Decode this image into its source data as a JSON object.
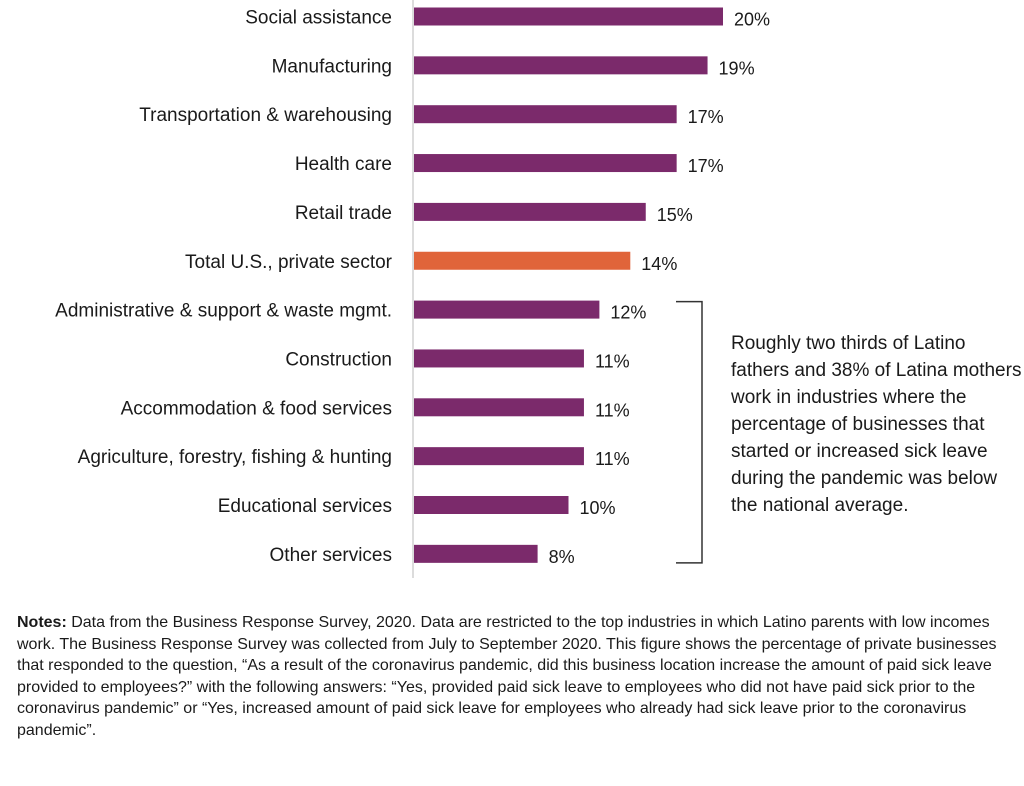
{
  "chart_data": {
    "type": "bar",
    "orientation": "horizontal",
    "categories": [
      "Social assistance",
      "Manufacturing",
      "Transportation & warehousing",
      "Health care",
      "Retail trade",
      "Total U.S., private sector",
      "Administrative & support & waste mgmt.",
      "Construction",
      "Accommodation & food services",
      "Agriculture, forestry, fishing & hunting",
      "Educational services",
      "Other services"
    ],
    "values": [
      20,
      19,
      17,
      17,
      15,
      14,
      12,
      11,
      11,
      11,
      10,
      8
    ],
    "value_labels": [
      "20%",
      "19%",
      "17%",
      "17%",
      "15%",
      "14%",
      "12%",
      "11%",
      "11%",
      "11%",
      "10%",
      "8%"
    ],
    "highlight_index": 5,
    "colors": {
      "bar": "#7b2a6b",
      "highlight": "#e0643a",
      "axis": "#d0d0d0",
      "bracket": "#333333"
    },
    "xlim": [
      0,
      20
    ],
    "grid": false,
    "annotation": {
      "bracket_from_index": 6,
      "bracket_to_index": 11,
      "text": "Roughly two thirds of Latino fathers and 38% of Latina mothers work in industries where the percentage of businesses that started or increased sick leave during the pandemic was below the national average."
    }
  },
  "notes": {
    "label": "Notes:",
    "text": " Data from the Business Response Survey, 2020. Data are restricted to the top industries in which Latino parents with low incomes work. The Business Response Survey was collected from July to September 2020. This figure shows the percentage of private businesses that responded to the question, “As a result of the coronavirus pandemic, did this business location increase the amount of paid sick leave provided to employees?” with the following answers: “Yes, provided paid sick leave to employees who did not have paid sick prior to the coronavirus pandemic” or “Yes, increased amount of paid sick leave for employees who already had sick leave prior to the coronavirus pandemic”."
  }
}
